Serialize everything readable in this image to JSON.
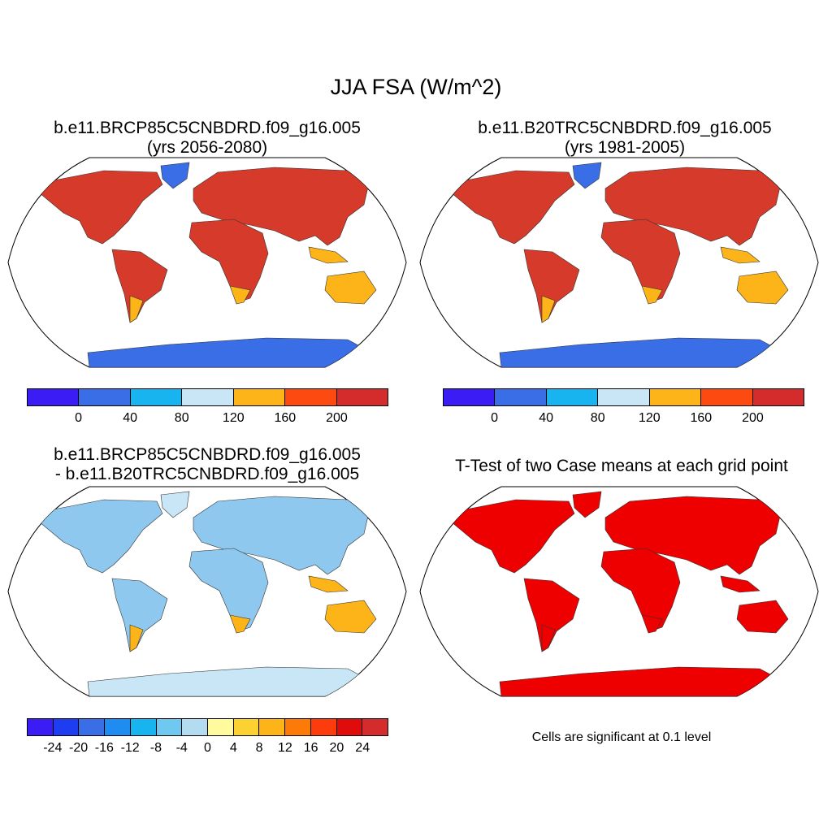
{
  "main_title": "JJA FSA (W/m^2)",
  "panels": {
    "top_left": {
      "line1": "b.e11.BRCP85C5CNBDRD.f09_g16.005",
      "line2": "(yrs 2056-2080)"
    },
    "top_right": {
      "line1": "b.e11.B20TRC5CNBDRD.f09_g16.005",
      "line2": "(yrs 1981-2005)"
    },
    "bottom_left": {
      "line1": "b.e11.BRCP85C5CNBDRD.f09_g16.005",
      "line2": "- b.e11.B20TRC5CNBDRD.f09_g16.005"
    },
    "bottom_right": {
      "line1": "T-Test of two Case means at each grid point",
      "note": "Cells are significant at 0.1 level"
    }
  },
  "colorbar_abs": {
    "colors": [
      "#3c1cf5",
      "#3a6ee6",
      "#18b4f0",
      "#c8e6f6",
      "#fcb418",
      "#fc4a10",
      "#d42c2c"
    ],
    "labels": [
      "0",
      "40",
      "80",
      "120",
      "160",
      "200"
    ]
  },
  "colorbar_diff": {
    "colors": [
      "#3c1cf5",
      "#1e3cf0",
      "#3a6ee6",
      "#1e8cf0",
      "#18b4f0",
      "#6ec8f0",
      "#b4dcf0",
      "#fffa9e",
      "#fcd232",
      "#fcb418",
      "#fc7a08",
      "#fc3c0c",
      "#e00c0c",
      "#d42c2c"
    ],
    "labels": [
      "-24",
      "-20",
      "-16",
      "-12",
      "-8",
      "-4",
      "0",
      "4",
      "8",
      "12",
      "16",
      "20",
      "24"
    ]
  },
  "maps": {
    "top_left": {
      "land": "#d63a2a",
      "south": "#fcb418",
      "ice": "#3a6ee6"
    },
    "top_right": {
      "land": "#d63a2a",
      "south": "#fcb418",
      "ice": "#3a6ee6"
    },
    "bottom_left": {
      "land": "#8fc8ee",
      "south": "#fcb418",
      "ice": "#c8e6f6"
    },
    "bottom_right": {
      "land": "#ee0000",
      "south": "#ee0000",
      "ice": "#ee0000"
    }
  }
}
